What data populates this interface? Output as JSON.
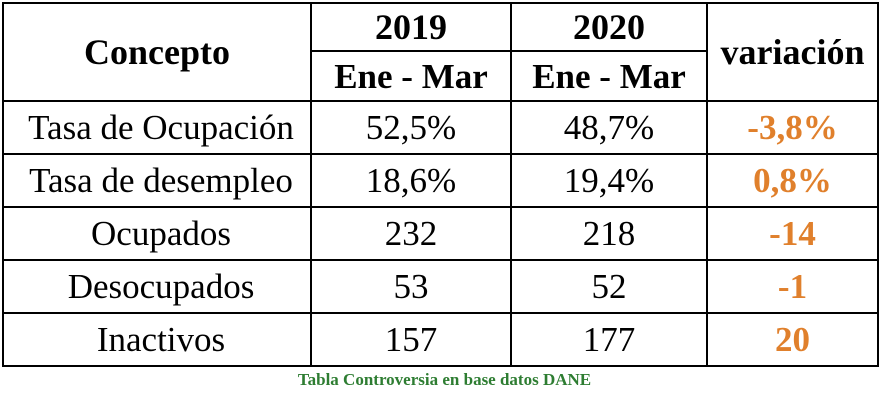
{
  "table": {
    "header": {
      "concept": "Concepto",
      "year_2019": "2019",
      "year_2020": "2020",
      "period_2019": "Ene - Mar",
      "period_2020": "Ene - Mar",
      "variation": "variación"
    },
    "rows": [
      {
        "concept": "Tasa de Ocupación",
        "v2019": "52,5%",
        "v2020": "48,7%",
        "variation": "-3,8%"
      },
      {
        "concept": "Tasa de desempleo",
        "v2019": "18,6%",
        "v2020": "19,4%",
        "variation": "0,8%"
      },
      {
        "concept": "Ocupados",
        "v2019": "232",
        "v2020": "218",
        "variation": "-14"
      },
      {
        "concept": "Desocupados",
        "v2019": "53",
        "v2020": "52",
        "variation": "-1"
      },
      {
        "concept": "Inactivos",
        "v2019": "157",
        "v2020": "177",
        "variation": "20"
      }
    ]
  },
  "caption": "Tabla Controversia en base datos DANE",
  "colors": {
    "variation_text": "#E0802C",
    "caption_text": "#2E7D32",
    "border": "#000000"
  }
}
